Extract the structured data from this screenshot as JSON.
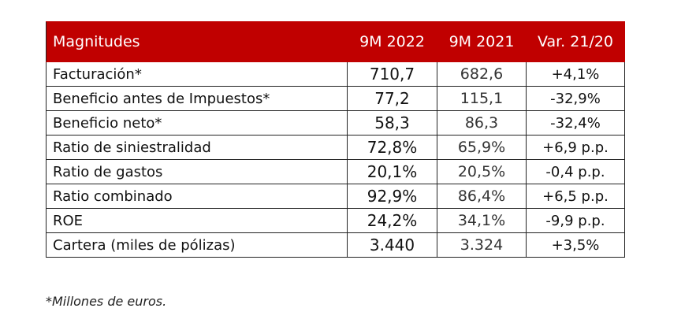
{
  "table": {
    "headers": [
      "Magnitudes",
      "9M 2022",
      "9M 2021",
      "Var. 21/20"
    ],
    "rows": [
      [
        "Facturación*",
        "710,7",
        "682,6",
        "+4,1%"
      ],
      [
        "Beneficio antes de Impuestos*",
        "77,2",
        "115,1",
        "-32,9%"
      ],
      [
        "Beneficio neto*",
        "58,3",
        "86,3",
        "-32,4%"
      ],
      [
        "Ratio de siniestralidad",
        "72,8%",
        "65,9%",
        "+6,9 p.p."
      ],
      [
        "Ratio de gastos",
        "20,1%",
        "20,5%",
        "-0,4 p.p."
      ],
      [
        "Ratio combinado",
        "92,9%",
        "86,4%",
        "+6,5 p.p."
      ],
      [
        "ROE",
        "24,2%",
        "34,1%",
        "-9,9 p.p."
      ],
      [
        "Cartera (miles de pólizas)",
        "3.440",
        "3.324",
        "+3,5%"
      ]
    ]
  },
  "footnote": "*Millones de euros.",
  "colors": {
    "header_bg": "#c00000",
    "header_text": "#ffffff"
  }
}
